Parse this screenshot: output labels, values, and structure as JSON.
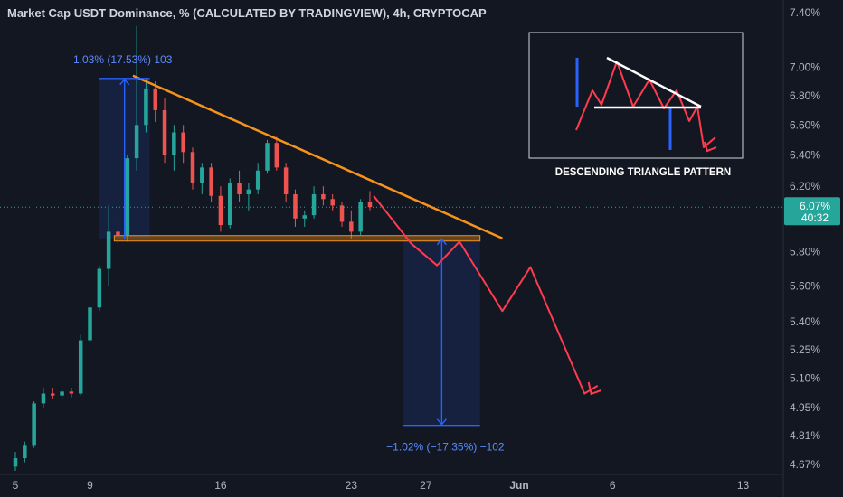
{
  "header": {
    "symbol": "Market Cap USDT Dominance, % (CALCULATED BY TRADINGVIEW)",
    "interval": "4h",
    "exchange": "CRYPTOCAP"
  },
  "price_axis": {
    "ticks": [
      "7.40%",
      "7.00%",
      "6.80%",
      "6.60%",
      "6.40%",
      "6.20%",
      "5.80%",
      "5.60%",
      "5.40%",
      "5.25%",
      "5.10%",
      "4.95%",
      "4.81%",
      "4.67%"
    ],
    "ticks_v": [
      7.4,
      7.0,
      6.8,
      6.6,
      6.4,
      6.2,
      5.8,
      5.6,
      5.4,
      5.25,
      5.1,
      4.95,
      4.81,
      4.67
    ],
    "current_price_label": "6.07%",
    "countdown_label": "40:32",
    "current_price": 6.07
  },
  "time_axis": {
    "ticks": [
      "5",
      "9",
      "16",
      "23",
      "27",
      "Jun",
      "6",
      "13"
    ],
    "ticks_d": [
      5,
      9,
      16,
      23,
      27,
      32,
      37,
      44
    ],
    "bold_tick": "Jun"
  },
  "colors": {
    "background": "#131722",
    "up": "#26a69a",
    "down": "#ef5350",
    "trendline": "#f7931a",
    "projection": "#ff3b4e",
    "measure": "#2962ff",
    "text": "#d1d4dc"
  },
  "annotations": {
    "measure_top_label": "1.03% (17.53%) 103",
    "measure_bottom_label": "−1.02% (−17.35%) −102",
    "inset_caption": "DESCENDING TRIANGLE PATTERN"
  },
  "chart_data": {
    "type": "candlestick",
    "title": "Market Cap USDT Dominance, % (CALCULATED BY TRADINGVIEW), 4h, CRYPTOCAP",
    "x_unit": "day (May; Jun 1 = 32)",
    "ylim": [
      4.64,
      7.46
    ],
    "xlim": [
      4.6,
      46.3
    ],
    "y_scale": "log",
    "candles": [
      {
        "d": 5.0,
        "o": 4.66,
        "h": 4.73,
        "l": 4.64,
        "c": 4.7
      },
      {
        "d": 5.5,
        "o": 4.7,
        "h": 4.78,
        "l": 4.68,
        "c": 4.76
      },
      {
        "d": 6.0,
        "o": 4.76,
        "h": 4.98,
        "l": 4.75,
        "c": 4.97
      },
      {
        "d": 6.5,
        "o": 4.97,
        "h": 5.05,
        "l": 4.95,
        "c": 5.02
      },
      {
        "d": 7.0,
        "o": 5.02,
        "h": 5.05,
        "l": 4.99,
        "c": 5.01
      },
      {
        "d": 7.5,
        "o": 5.01,
        "h": 5.04,
        "l": 4.99,
        "c": 5.03
      },
      {
        "d": 8.0,
        "o": 5.03,
        "h": 5.05,
        "l": 5.0,
        "c": 5.02
      },
      {
        "d": 8.5,
        "o": 5.02,
        "h": 5.33,
        "l": 5.01,
        "c": 5.3
      },
      {
        "d": 9.0,
        "o": 5.3,
        "h": 5.52,
        "l": 5.28,
        "c": 5.48
      },
      {
        "d": 9.5,
        "o": 5.48,
        "h": 5.72,
        "l": 5.46,
        "c": 5.7
      },
      {
        "d": 10.0,
        "o": 5.7,
        "h": 6.08,
        "l": 5.6,
        "c": 5.92
      },
      {
        "d": 10.5,
        "o": 5.92,
        "h": 6.05,
        "l": 5.8,
        "c": 5.9
      },
      {
        "d": 11.0,
        "o": 5.9,
        "h": 6.4,
        "l": 5.86,
        "c": 6.38
      },
      {
        "d": 11.5,
        "o": 6.38,
        "h": 7.3,
        "l": 6.3,
        "c": 6.6
      },
      {
        "d": 12.0,
        "o": 6.6,
        "h": 6.92,
        "l": 6.55,
        "c": 6.85
      },
      {
        "d": 12.5,
        "o": 6.85,
        "h": 6.9,
        "l": 6.62,
        "c": 6.7
      },
      {
        "d": 13.0,
        "o": 6.7,
        "h": 6.78,
        "l": 6.35,
        "c": 6.4
      },
      {
        "d": 13.5,
        "o": 6.4,
        "h": 6.6,
        "l": 6.3,
        "c": 6.55
      },
      {
        "d": 14.0,
        "o": 6.55,
        "h": 6.6,
        "l": 6.35,
        "c": 6.42
      },
      {
        "d": 14.5,
        "o": 6.42,
        "h": 6.45,
        "l": 6.18,
        "c": 6.22
      },
      {
        "d": 15.0,
        "o": 6.22,
        "h": 6.35,
        "l": 6.15,
        "c": 6.32
      },
      {
        "d": 15.5,
        "o": 6.32,
        "h": 6.35,
        "l": 6.1,
        "c": 6.14
      },
      {
        "d": 16.0,
        "o": 6.14,
        "h": 6.2,
        "l": 5.92,
        "c": 5.96
      },
      {
        "d": 16.5,
        "o": 5.96,
        "h": 6.25,
        "l": 5.94,
        "c": 6.22
      },
      {
        "d": 17.0,
        "o": 6.22,
        "h": 6.3,
        "l": 6.1,
        "c": 6.15
      },
      {
        "d": 17.5,
        "o": 6.15,
        "h": 6.22,
        "l": 6.05,
        "c": 6.18
      },
      {
        "d": 18.0,
        "o": 6.18,
        "h": 6.35,
        "l": 6.15,
        "c": 6.3
      },
      {
        "d": 18.5,
        "o": 6.3,
        "h": 6.5,
        "l": 6.28,
        "c": 6.48
      },
      {
        "d": 19.0,
        "o": 6.48,
        "h": 6.52,
        "l": 6.3,
        "c": 6.32
      },
      {
        "d": 19.5,
        "o": 6.32,
        "h": 6.35,
        "l": 6.1,
        "c": 6.15
      },
      {
        "d": 20.0,
        "o": 6.15,
        "h": 6.18,
        "l": 5.95,
        "c": 6.0
      },
      {
        "d": 20.5,
        "o": 6.0,
        "h": 6.05,
        "l": 5.95,
        "c": 6.02
      },
      {
        "d": 21.0,
        "o": 6.02,
        "h": 6.2,
        "l": 6.0,
        "c": 6.15
      },
      {
        "d": 21.5,
        "o": 6.15,
        "h": 6.2,
        "l": 6.08,
        "c": 6.12
      },
      {
        "d": 22.0,
        "o": 6.12,
        "h": 6.15,
        "l": 6.05,
        "c": 6.08
      },
      {
        "d": 22.5,
        "o": 6.08,
        "h": 6.1,
        "l": 5.95,
        "c": 5.98
      },
      {
        "d": 23.0,
        "o": 5.98,
        "h": 6.05,
        "l": 5.88,
        "c": 5.92
      },
      {
        "d": 23.5,
        "o": 5.92,
        "h": 6.12,
        "l": 5.9,
        "c": 6.1
      },
      {
        "d": 24.0,
        "o": 6.1,
        "h": 6.17,
        "l": 6.05,
        "c": 6.07
      }
    ],
    "resistance": [
      {
        "d": 11.3,
        "v": 6.94
      },
      {
        "d": 31.1,
        "v": 5.88
      }
    ],
    "support": {
      "d_start": 10.3,
      "d_end": 29.9,
      "v": 5.88
    },
    "projection": [
      {
        "d": 24.2,
        "v": 6.14
      },
      {
        "d": 26.2,
        "v": 5.85
      },
      {
        "d": 27.6,
        "v": 5.72
      },
      {
        "d": 28.8,
        "v": 5.86
      },
      {
        "d": 31.1,
        "v": 5.46
      },
      {
        "d": 32.6,
        "v": 5.71
      },
      {
        "d": 35.5,
        "v": 5.02
      },
      {
        "d": 36.2,
        "v": 5.06
      }
    ],
    "measure_up": {
      "d_start": 9.5,
      "d_end": 12.2,
      "from": 5.88,
      "to": 6.92
    },
    "measure_down": {
      "d_start": 25.8,
      "d_end": 29.9,
      "from": 5.88,
      "to": 4.86
    }
  }
}
